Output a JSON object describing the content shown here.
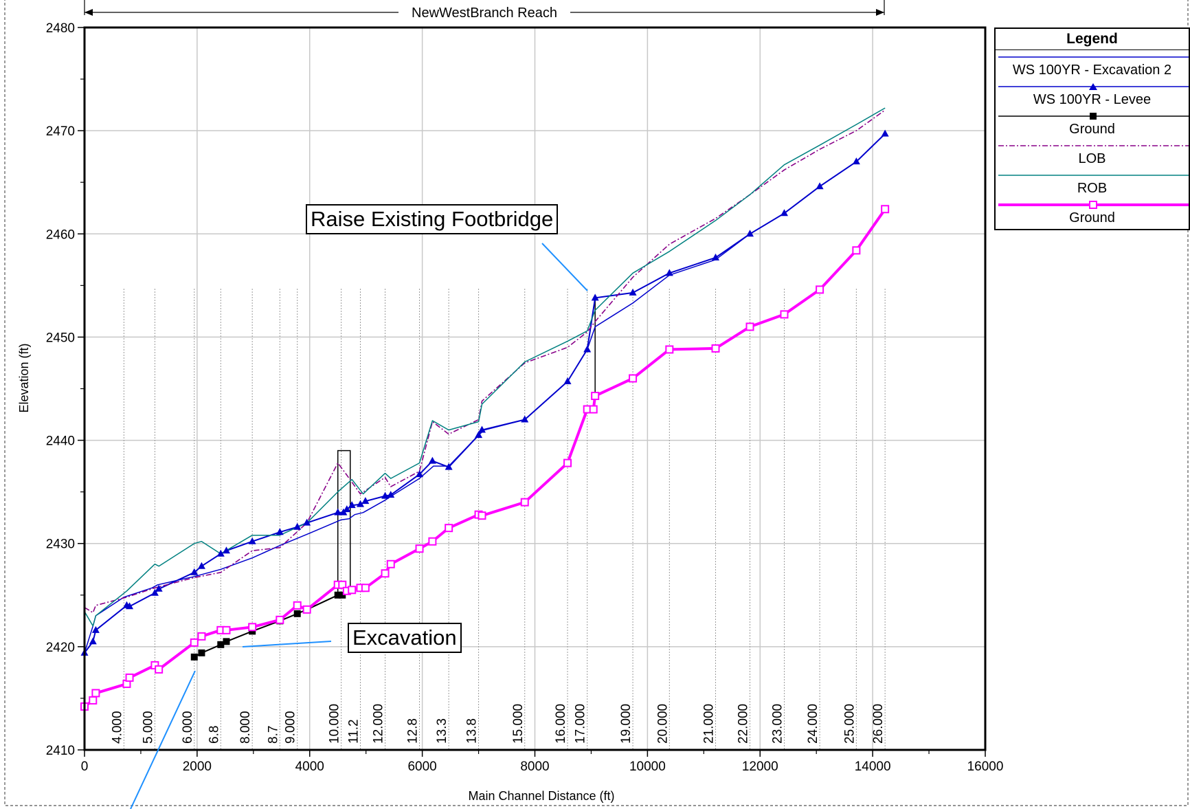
{
  "chart_data": {
    "type": "line",
    "title": "NewWestBranch Reach",
    "xlabel": "Main Channel Distance (ft)",
    "ylabel": "Elevation (ft)",
    "xlim": [
      0,
      16000
    ],
    "ylim": [
      2410,
      2480
    ],
    "xticks": [
      0,
      2000,
      4000,
      6000,
      8000,
      10000,
      12000,
      14000,
      16000
    ],
    "yticks": [
      2410,
      2420,
      2430,
      2440,
      2450,
      2460,
      2470,
      2480
    ],
    "grid": true,
    "legend": {
      "title": "Legend",
      "placement": "right",
      "entries": [
        "WS  100YR - Excavation 2",
        "WS  100YR - Levee",
        "Ground",
        "LOB",
        "ROB",
        "Ground"
      ]
    },
    "annotations": {
      "footbridge": "Raise Existing Footbridge",
      "excavation": "Excavation"
    },
    "station_labels": [
      {
        "x": 700,
        "label": "4.000"
      },
      {
        "x": 1250,
        "label": "5.000"
      },
      {
        "x": 1950,
        "label": "6.000"
      },
      {
        "x": 2420,
        "label": "6.8"
      },
      {
        "x": 2980,
        "label": "8.000"
      },
      {
        "x": 3470,
        "label": "8.7"
      },
      {
        "x": 3780,
        "label": "9.000"
      },
      {
        "x": 4560,
        "label": "10.000"
      },
      {
        "x": 4900,
        "label": "11.2"
      },
      {
        "x": 5340,
        "label": "12.000"
      },
      {
        "x": 5950,
        "label": "12.8"
      },
      {
        "x": 6470,
        "label": "13.3"
      },
      {
        "x": 7000,
        "label": "13.8"
      },
      {
        "x": 7820,
        "label": "15.000"
      },
      {
        "x": 8580,
        "label": "16.000"
      },
      {
        "x": 8930,
        "label": "17.000"
      },
      {
        "x": 9740,
        "label": "19.000"
      },
      {
        "x": 10390,
        "label": "20.000"
      },
      {
        "x": 11210,
        "label": "21.000"
      },
      {
        "x": 11820,
        "label": "22.000"
      },
      {
        "x": 12430,
        "label": "23.000"
      },
      {
        "x": 13060,
        "label": "24.000"
      },
      {
        "x": 13710,
        "label": "25.000"
      },
      {
        "x": 14220,
        "label": "26.000"
      }
    ],
    "series": [
      {
        "name": "WS  100YR - Excavation 2",
        "color": "#0000cc",
        "style": "solid-thin",
        "points": [
          [
            0,
            2419.4
          ],
          [
            150,
            2422.0
          ],
          [
            200,
            2423.0
          ],
          [
            700,
            2424.8
          ],
          [
            1200,
            2425.7
          ],
          [
            1300,
            2426.0
          ],
          [
            1950,
            2426.8
          ],
          [
            2420,
            2427.5
          ],
          [
            2980,
            2428.6
          ],
          [
            3470,
            2429.8
          ],
          [
            3780,
            2430.5
          ],
          [
            4000,
            2431.0
          ],
          [
            4560,
            2432.3
          ],
          [
            4700,
            2432.4
          ],
          [
            4800,
            2432.8
          ],
          [
            4950,
            2433.0
          ],
          [
            5340,
            2434.2
          ],
          [
            5450,
            2434.6
          ],
          [
            5950,
            2436.3
          ],
          [
            6200,
            2437.5
          ],
          [
            6470,
            2437.5
          ],
          [
            7000,
            2440.5
          ],
          [
            7100,
            2441.0
          ],
          [
            7820,
            2442.0
          ],
          [
            8580,
            2445.7
          ],
          [
            8930,
            2448.8
          ],
          [
            9070,
            2451.0
          ],
          [
            9740,
            2453.3
          ],
          [
            10390,
            2456.0
          ],
          [
            11210,
            2457.5
          ],
          [
            11820,
            2460.0
          ],
          [
            12430,
            2462.0
          ],
          [
            13060,
            2464.6
          ],
          [
            13710,
            2467.0
          ],
          [
            14220,
            2469.7
          ]
        ]
      },
      {
        "name": "WS  100YR - Levee",
        "color": "#0000cc",
        "style": "triangle-markers",
        "points": [
          [
            0,
            2419.4
          ],
          [
            150,
            2420.5
          ],
          [
            200,
            2421.6
          ],
          [
            750,
            2424.0
          ],
          [
            800,
            2423.9
          ],
          [
            1250,
            2425.2
          ],
          [
            1320,
            2425.6
          ],
          [
            1950,
            2427.2
          ],
          [
            2080,
            2427.8
          ],
          [
            2420,
            2429.0
          ],
          [
            2520,
            2429.3
          ],
          [
            2980,
            2430.2
          ],
          [
            3470,
            2431.1
          ],
          [
            3780,
            2431.6
          ],
          [
            3950,
            2432.0
          ],
          [
            4500,
            2433.0
          ],
          [
            4600,
            2433.0
          ],
          [
            4660,
            2433.3
          ],
          [
            4750,
            2433.7
          ],
          [
            4900,
            2433.8
          ],
          [
            4990,
            2434.1
          ],
          [
            5340,
            2434.6
          ],
          [
            5440,
            2434.7
          ],
          [
            5950,
            2436.7
          ],
          [
            6180,
            2438.0
          ],
          [
            6470,
            2437.4
          ],
          [
            7000,
            2440.5
          ],
          [
            7060,
            2441.0
          ],
          [
            7820,
            2442.0
          ],
          [
            8580,
            2445.7
          ],
          [
            8930,
            2448.8
          ],
          [
            9070,
            2453.8
          ],
          [
            9740,
            2454.3
          ],
          [
            10390,
            2456.2
          ],
          [
            11210,
            2457.7
          ],
          [
            11820,
            2460.0
          ],
          [
            12430,
            2462.0
          ],
          [
            13060,
            2464.6
          ],
          [
            13710,
            2467.0
          ],
          [
            14220,
            2469.7
          ]
        ]
      },
      {
        "name": "Ground",
        "color": "#000000",
        "style": "square-markers",
        "points": [
          [
            1950,
            2419.0
          ],
          [
            2080,
            2419.4
          ],
          [
            2420,
            2420.2
          ],
          [
            2520,
            2420.5
          ],
          [
            2980,
            2421.5
          ],
          [
            3470,
            2422.5
          ],
          [
            3780,
            2423.2
          ],
          [
            3950,
            2423.6
          ],
          [
            4500,
            2425.0
          ],
          [
            4580,
            2425.0
          ]
        ]
      },
      {
        "name": "LOB",
        "color": "#880088",
        "style": "dash-dot",
        "points": [
          [
            0,
            2423.8
          ],
          [
            150,
            2423.3
          ],
          [
            200,
            2424.0
          ],
          [
            750,
            2424.8
          ],
          [
            1250,
            2425.7
          ],
          [
            1950,
            2426.7
          ],
          [
            2420,
            2427.2
          ],
          [
            2980,
            2429.3
          ],
          [
            3470,
            2429.6
          ],
          [
            3950,
            2432.0
          ],
          [
            4500,
            2437.8
          ],
          [
            4650,
            2436.7
          ],
          [
            4900,
            2434.8
          ],
          [
            5340,
            2436.4
          ],
          [
            5440,
            2435.5
          ],
          [
            5950,
            2437.0
          ],
          [
            6180,
            2441.8
          ],
          [
            6470,
            2440.6
          ],
          [
            7000,
            2442.0
          ],
          [
            7060,
            2443.8
          ],
          [
            7820,
            2447.5
          ],
          [
            8580,
            2449.0
          ],
          [
            8930,
            2450.5
          ],
          [
            9070,
            2451.5
          ],
          [
            9740,
            2455.8
          ],
          [
            10390,
            2459.0
          ],
          [
            11210,
            2461.5
          ],
          [
            11820,
            2463.8
          ],
          [
            12430,
            2466.2
          ],
          [
            13060,
            2468.2
          ],
          [
            13710,
            2470.0
          ],
          [
            14220,
            2472.0
          ]
        ]
      },
      {
        "name": "ROB",
        "color": "#008080",
        "style": "solid-thin",
        "points": [
          [
            0,
            2423.4
          ],
          [
            150,
            2422.0
          ],
          [
            200,
            2423.0
          ],
          [
            750,
            2425.4
          ],
          [
            1250,
            2428.0
          ],
          [
            1320,
            2427.8
          ],
          [
            1950,
            2430.0
          ],
          [
            2080,
            2430.2
          ],
          [
            2420,
            2429.0
          ],
          [
            2980,
            2430.8
          ],
          [
            3470,
            2430.8
          ],
          [
            3950,
            2432.0
          ],
          [
            4500,
            2435.0
          ],
          [
            4750,
            2436.2
          ],
          [
            4950,
            2434.8
          ],
          [
            5340,
            2436.8
          ],
          [
            5440,
            2436.3
          ],
          [
            5950,
            2437.8
          ],
          [
            6180,
            2441.9
          ],
          [
            6470,
            2441.0
          ],
          [
            7000,
            2441.8
          ],
          [
            7060,
            2443.5
          ],
          [
            7820,
            2447.6
          ],
          [
            8580,
            2449.6
          ],
          [
            8930,
            2450.6
          ],
          [
            9070,
            2452.6
          ],
          [
            9740,
            2456.2
          ],
          [
            10390,
            2458.3
          ],
          [
            11210,
            2461.3
          ],
          [
            11820,
            2463.8
          ],
          [
            12430,
            2466.7
          ],
          [
            13060,
            2468.6
          ],
          [
            13710,
            2470.6
          ],
          [
            14220,
            2472.2
          ]
        ]
      },
      {
        "name": "Ground",
        "color": "#ff00ff",
        "style": "thick-open-square-markers",
        "points": [
          [
            0,
            2414.2
          ],
          [
            150,
            2414.8
          ],
          [
            200,
            2415.5
          ],
          [
            750,
            2416.4
          ],
          [
            800,
            2417.0
          ],
          [
            1250,
            2418.2
          ],
          [
            1320,
            2417.8
          ],
          [
            1950,
            2420.4
          ],
          [
            2080,
            2421.0
          ],
          [
            2420,
            2421.6
          ],
          [
            2520,
            2421.6
          ],
          [
            2980,
            2421.9
          ],
          [
            3470,
            2422.6
          ],
          [
            3780,
            2424.0
          ],
          [
            3950,
            2423.6
          ],
          [
            4500,
            2426.0
          ],
          [
            4580,
            2426.0
          ],
          [
            4660,
            2425.4
          ],
          [
            4750,
            2425.5
          ],
          [
            4900,
            2425.7
          ],
          [
            4990,
            2425.7
          ],
          [
            5340,
            2427.1
          ],
          [
            5440,
            2428.0
          ],
          [
            5950,
            2429.5
          ],
          [
            6180,
            2430.2
          ],
          [
            6470,
            2431.5
          ],
          [
            7000,
            2432.8
          ],
          [
            7060,
            2432.7
          ],
          [
            7820,
            2434.0
          ],
          [
            8580,
            2437.8
          ],
          [
            8930,
            2443.0
          ],
          [
            9040,
            2443.0
          ],
          [
            9070,
            2444.3
          ],
          [
            9740,
            2446.0
          ],
          [
            10390,
            2448.8
          ],
          [
            11210,
            2448.9
          ],
          [
            11820,
            2451.0
          ],
          [
            12430,
            2452.2
          ],
          [
            13060,
            2454.6
          ],
          [
            13710,
            2458.4
          ],
          [
            14220,
            2462.4
          ]
        ]
      }
    ]
  }
}
